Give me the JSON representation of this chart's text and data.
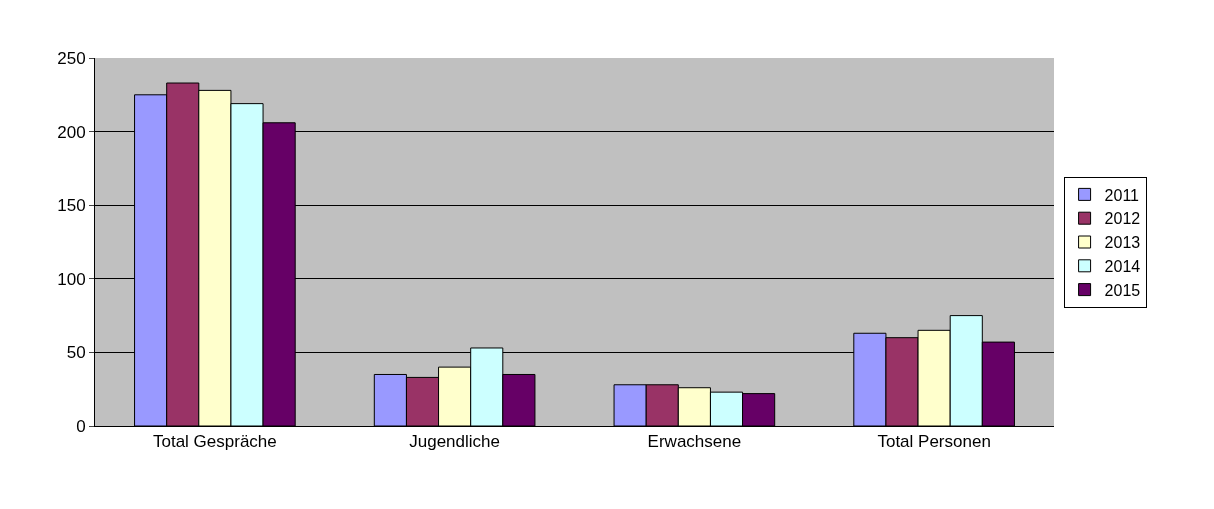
{
  "chart_data": {
    "type": "bar",
    "categories": [
      "Total Gespräche",
      "Jugendliche",
      "Erwachsene",
      "Total Personen"
    ],
    "series": [
      {
        "name": "2011",
        "color": "#9999ff",
        "values": [
          225,
          35,
          28,
          63
        ]
      },
      {
        "name": "2012",
        "color": "#993366",
        "values": [
          233,
          33,
          28,
          60
        ]
      },
      {
        "name": "2013",
        "color": "#ffffcc",
        "values": [
          228,
          40,
          26,
          65
        ]
      },
      {
        "name": "2014",
        "color": "#ccffff",
        "values": [
          219,
          53,
          23,
          75
        ]
      },
      {
        "name": "2015",
        "color": "#660066",
        "values": [
          206,
          35,
          22,
          57
        ]
      }
    ],
    "ylim": [
      0,
      250
    ],
    "yticks": [
      0,
      50,
      100,
      150,
      200,
      250
    ],
    "grid": "y",
    "legend": "right"
  }
}
